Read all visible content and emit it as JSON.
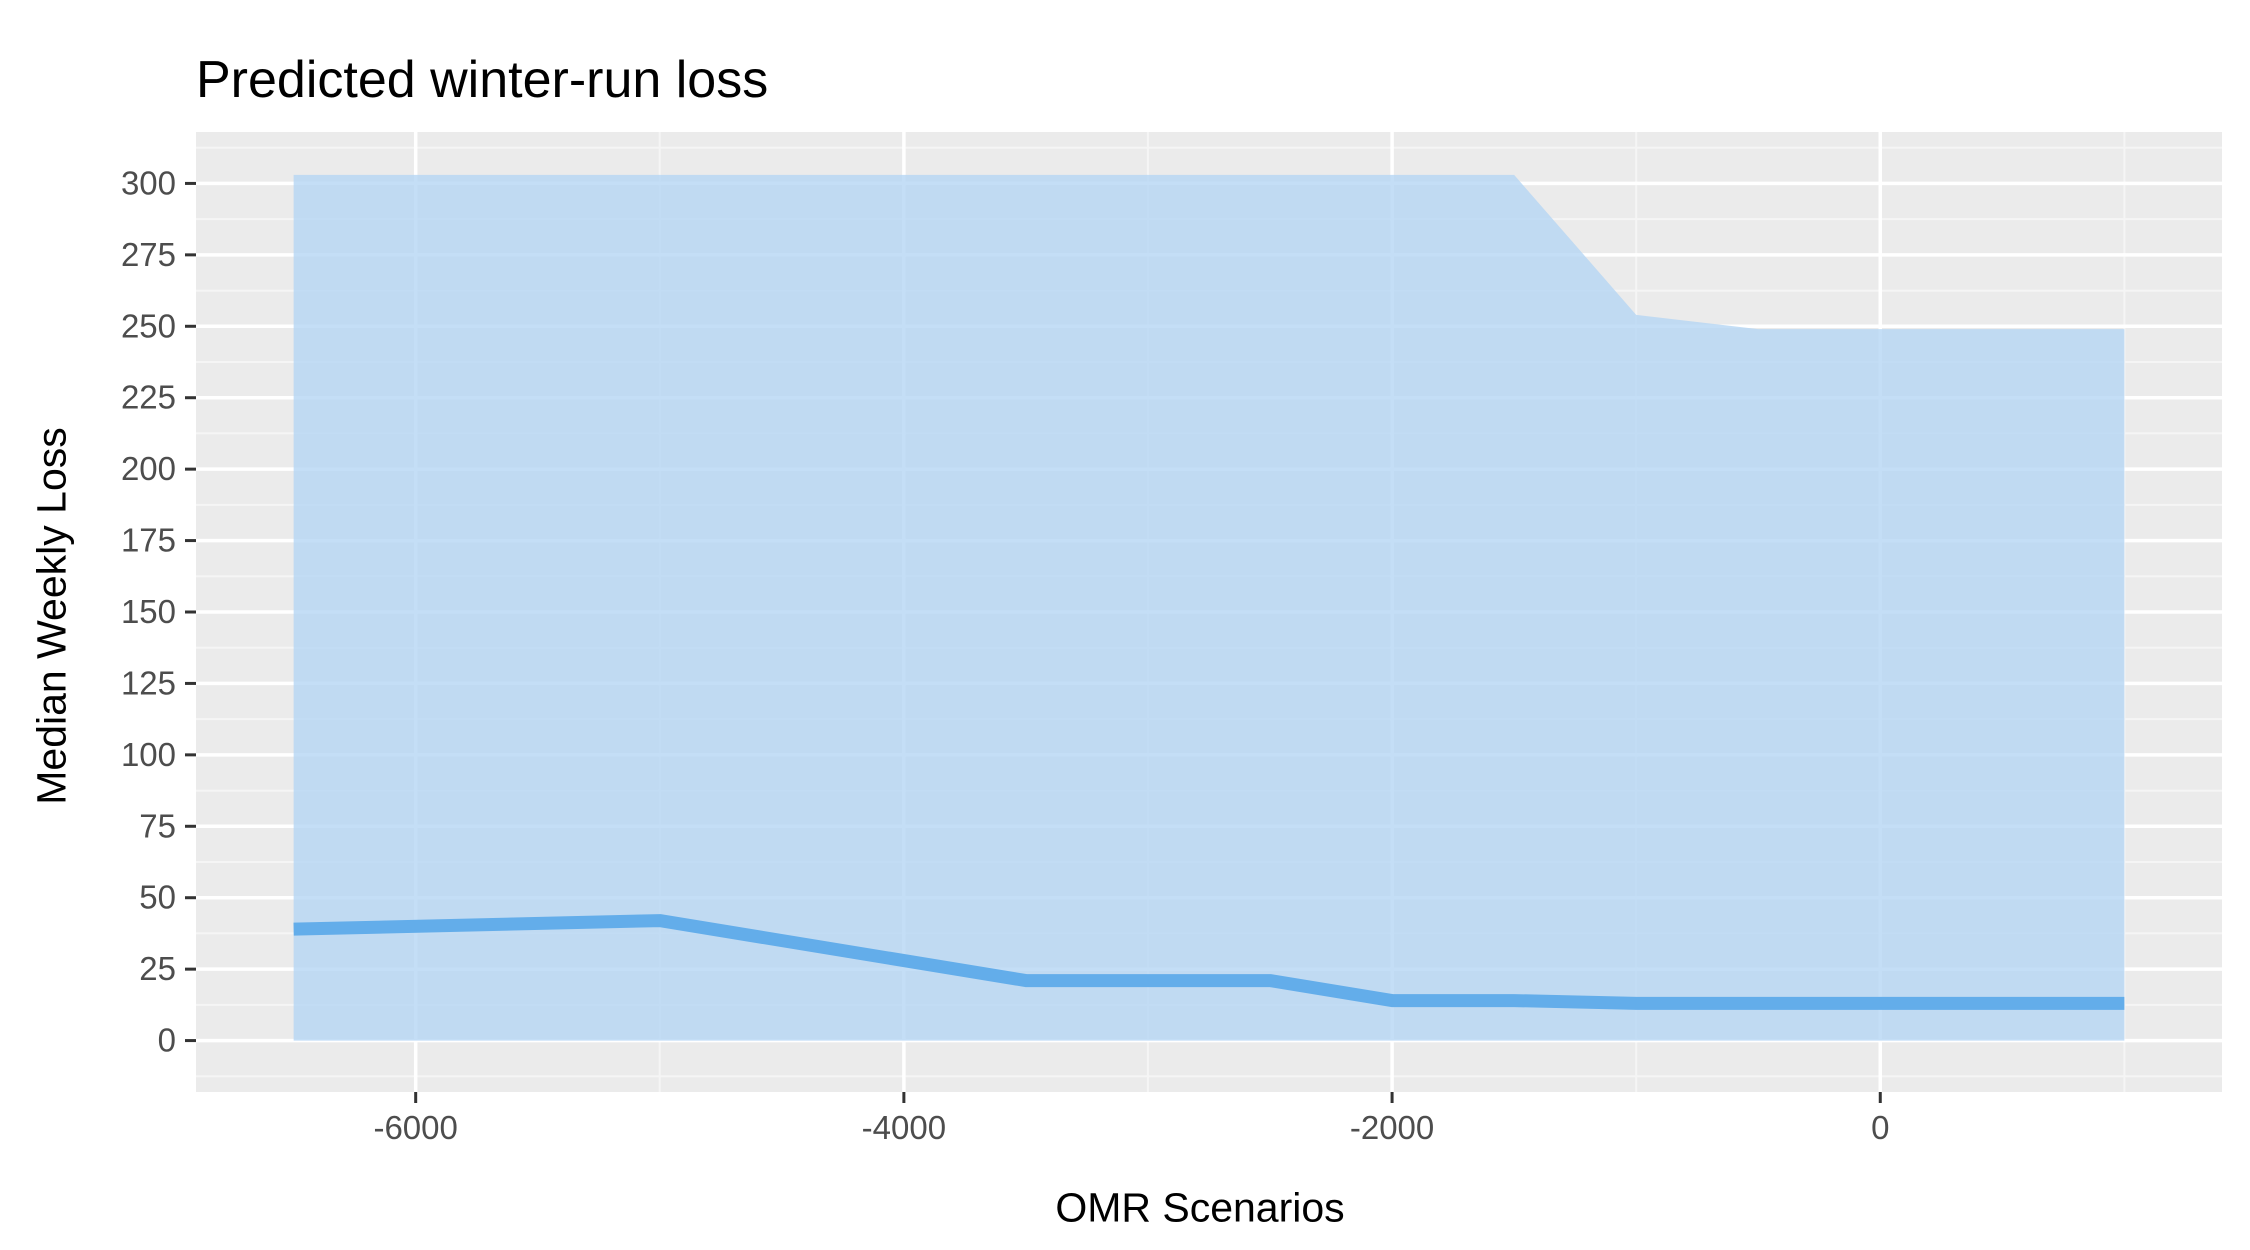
{
  "chart_data": {
    "type": "area",
    "title": "Predicted winter-run loss",
    "xlabel": "OMR Scenarios",
    "ylabel": "Median Weekly Loss",
    "xlim": [
      -6900,
      1400
    ],
    "ylim": [
      -18,
      318
    ],
    "x_ticks": [
      -6000,
      -4000,
      -2000,
      0
    ],
    "x_tick_labels": [
      "-6000",
      "-4000",
      "-2000",
      "0"
    ],
    "y_ticks": [
      0,
      25,
      50,
      75,
      100,
      125,
      150,
      175,
      200,
      225,
      250,
      275,
      300
    ],
    "y_tick_labels": [
      "0",
      "25",
      "50",
      "75",
      "100",
      "125",
      "150",
      "175",
      "200",
      "225",
      "250",
      "275",
      "300"
    ],
    "grid": true,
    "legend": "none",
    "x": [
      -6500,
      -5000,
      -3500,
      -2500,
      -2000,
      -1500,
      -1000,
      -500,
      0,
      1000
    ],
    "series": [
      {
        "values": [
          39,
          42,
          21,
          21,
          14,
          14,
          13,
          13,
          13,
          13
        ],
        "lower": [
          0,
          0,
          0,
          0,
          0,
          0,
          0,
          0,
          0,
          0
        ],
        "upper": [
          303,
          303,
          303,
          303,
          303,
          303,
          254,
          249,
          249,
          249
        ]
      }
    ],
    "colors": {
      "panel_background": "#EBEBEB",
      "grid_major": "#FFFFFF",
      "grid_minor": "#F5F5F5",
      "ribbon": "#B3D5F4",
      "line": "#63ADEA"
    }
  }
}
